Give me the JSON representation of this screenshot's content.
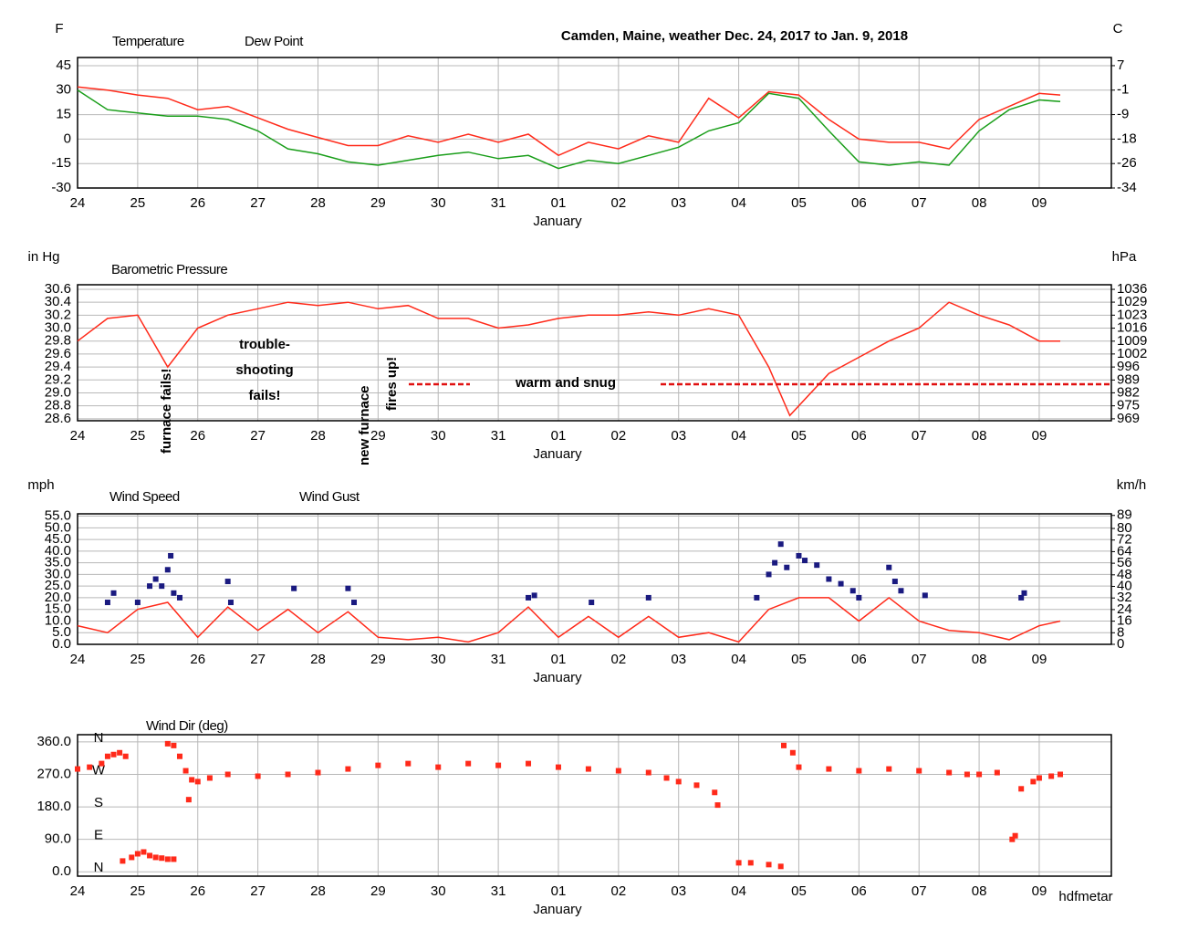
{
  "chart_data": [
    {
      "type": "line",
      "title": "Camden, Maine, weather Dec. 24, 2017 to Jan. 9, 2018",
      "y_unit": "F",
      "y2_unit": "C",
      "x_label": "January",
      "xlim": [
        0,
        17.2
      ],
      "xticks": [
        {
          "value": 0,
          "label": "24"
        },
        {
          "value": 1,
          "label": "25"
        },
        {
          "value": 2,
          "label": "26"
        },
        {
          "value": 3,
          "label": "27"
        },
        {
          "value": 4,
          "label": "28"
        },
        {
          "value": 5,
          "label": "29"
        },
        {
          "value": 6,
          "label": "30"
        },
        {
          "value": 7,
          "label": "31"
        },
        {
          "value": 8,
          "label": "01"
        },
        {
          "value": 9,
          "label": "02"
        },
        {
          "value": 10,
          "label": "03"
        },
        {
          "value": 11,
          "label": "04"
        },
        {
          "value": 12,
          "label": "05"
        },
        {
          "value": 13,
          "label": "06"
        },
        {
          "value": 14,
          "label": "07"
        },
        {
          "value": 15,
          "label": "08"
        },
        {
          "value": 16,
          "label": "09"
        }
      ],
      "ylim": [
        -30,
        50
      ],
      "yticks": [
        45,
        30,
        15,
        0,
        -15,
        -30
      ],
      "y2lim": [
        -34.44,
        10
      ],
      "y2ticks": [
        {
          "value": 7.22,
          "label": "7"
        },
        {
          "value": -1.11,
          "label": "-1"
        },
        {
          "value": -9.44,
          "label": "-9"
        },
        {
          "value": -17.78,
          "label": "-18"
        },
        {
          "value": -26.11,
          "label": "-26"
        },
        {
          "value": -34.44,
          "label": "-34"
        }
      ],
      "grid": true,
      "x": [
        0,
        0.5,
        1,
        1.5,
        2,
        2.5,
        3,
        3.5,
        4,
        4.5,
        5,
        5.5,
        6,
        6.5,
        7,
        7.5,
        8,
        8.5,
        9,
        9.5,
        10,
        10.5,
        11,
        11.5,
        12,
        12.5,
        13,
        13.5,
        14,
        14.5,
        15,
        15.5,
        16,
        16.35
      ],
      "series": [
        {
          "name": "Temperature",
          "color": "#ff2a1a",
          "values": [
            32,
            30,
            27,
            25,
            18,
            20,
            13,
            6,
            1,
            -4,
            -4,
            2,
            -2,
            3,
            -2,
            3,
            -10,
            -2,
            -6,
            2,
            -2,
            25,
            13,
            29,
            27,
            12,
            0,
            -2,
            -2,
            -6,
            12,
            20,
            28,
            27
          ]
        },
        {
          "name": "Dew Point",
          "color": "#1a9e1a",
          "values": [
            30,
            18,
            16,
            14,
            14,
            12,
            5,
            -6,
            -9,
            -14,
            -16,
            -13,
            -10,
            -8,
            -12,
            -10,
            -18,
            -13,
            -15,
            -10,
            -5,
            5,
            10,
            28,
            25,
            5,
            -14,
            -16,
            -14,
            -16,
            5,
            18,
            24,
            23
          ]
        }
      ]
    },
    {
      "type": "line",
      "y_unit": "in Hg",
      "y2_unit": "hPa",
      "x_label": "January",
      "xlim": [
        0,
        17.2
      ],
      "xticks": [
        {
          "value": 0,
          "label": "24"
        },
        {
          "value": 1,
          "label": "25"
        },
        {
          "value": 2,
          "label": "26"
        },
        {
          "value": 3,
          "label": "27"
        },
        {
          "value": 4,
          "label": "28"
        },
        {
          "value": 5,
          "label": "29"
        },
        {
          "value": 6,
          "label": "30"
        },
        {
          "value": 7,
          "label": "31"
        },
        {
          "value": 8,
          "label": "01"
        },
        {
          "value": 9,
          "label": "02"
        },
        {
          "value": 10,
          "label": "03"
        },
        {
          "value": 11,
          "label": "04"
        },
        {
          "value": 12,
          "label": "05"
        },
        {
          "value": 13,
          "label": "06"
        },
        {
          "value": 14,
          "label": "07"
        },
        {
          "value": 15,
          "label": "08"
        },
        {
          "value": 16,
          "label": "09"
        }
      ],
      "ylim": [
        28.57,
        30.67
      ],
      "yticks": [
        30.6,
        30.4,
        30.2,
        {
          "value": 30,
          "label": "30.0"
        },
        29.8,
        29.6,
        29.4,
        29.2,
        {
          "value": 29,
          "label": "29.0"
        },
        28.8,
        28.6
      ],
      "y2lim": [
        967.5,
        1038.6
      ],
      "y2ticks": [
        {
          "value": 1036.2,
          "label": "1036"
        },
        {
          "value": 1029.5,
          "label": "1029"
        },
        {
          "value": 1022.7,
          "label": "1023"
        },
        {
          "value": 1015.9,
          "label": "1016"
        },
        {
          "value": 1009.1,
          "label": "1009"
        },
        {
          "value": 1002.4,
          "label": "1002"
        },
        {
          "value": 995.6,
          "label": "996"
        },
        {
          "value": 988.8,
          "label": "989"
        },
        {
          "value": 982.1,
          "label": "982"
        },
        {
          "value": 975.3,
          "label": "975"
        },
        {
          "value": 968.5,
          "label": "969"
        }
      ],
      "grid": true,
      "x": [
        0,
        0.5,
        1,
        1.5,
        2,
        2.5,
        3,
        3.5,
        4,
        4.5,
        5,
        5.5,
        6,
        6.5,
        7,
        7.5,
        8,
        8.5,
        9,
        9.5,
        10,
        10.5,
        11,
        11.5,
        11.85,
        12.5,
        13,
        13.5,
        14,
        14.5,
        15,
        15.5,
        16,
        16.35
      ],
      "series": [
        {
          "name": "Barometric Pressure",
          "color": "#ff2a1a",
          "values": [
            29.8,
            30.15,
            30.2,
            29.4,
            30.0,
            30.2,
            30.3,
            30.4,
            30.35,
            30.4,
            30.3,
            30.35,
            30.15,
            30.15,
            30.0,
            30.05,
            30.15,
            30.2,
            30.2,
            30.25,
            30.2,
            30.3,
            30.2,
            29.4,
            28.65,
            29.3,
            29.55,
            29.8,
            30.0,
            30.4,
            30.2,
            30.05,
            29.8,
            29.8
          ]
        }
      ],
      "annotations": [
        {
          "text": "furnace fails!",
          "color": "#1a1a70"
        },
        {
          "lines": [
            "trouble-",
            "shooting",
            "fails!"
          ],
          "color": "#1a1a70"
        },
        {
          "lines": [
            "new furnace",
            "fires up!"
          ],
          "color": "#e01010"
        },
        {
          "text": "warm and snug",
          "color": "#e01010"
        }
      ]
    },
    {
      "type": "line",
      "y_unit": "mph",
      "y2_unit": "km/h",
      "x_label": "January",
      "xlim": [
        0,
        17.2
      ],
      "xticks": [
        {
          "value": 0,
          "label": "24"
        },
        {
          "value": 1,
          "label": "25"
        },
        {
          "value": 2,
          "label": "26"
        },
        {
          "value": 3,
          "label": "27"
        },
        {
          "value": 4,
          "label": "28"
        },
        {
          "value": 5,
          "label": "29"
        },
        {
          "value": 6,
          "label": "30"
        },
        {
          "value": 7,
          "label": "31"
        },
        {
          "value": 8,
          "label": "01"
        },
        {
          "value": 9,
          "label": "02"
        },
        {
          "value": 10,
          "label": "03"
        },
        {
          "value": 11,
          "label": "04"
        },
        {
          "value": 12,
          "label": "05"
        },
        {
          "value": 13,
          "label": "06"
        },
        {
          "value": 14,
          "label": "07"
        },
        {
          "value": 15,
          "label": "08"
        },
        {
          "value": 16,
          "label": "09"
        }
      ],
      "ylim": [
        0,
        56
      ],
      "yticks": [
        {
          "value": 55,
          "label": "55.0"
        },
        {
          "value": 50,
          "label": "50.0"
        },
        {
          "value": 45,
          "label": "45.0"
        },
        {
          "value": 40,
          "label": "40.0"
        },
        {
          "value": 35,
          "label": "35.0"
        },
        {
          "value": 30,
          "label": "30.0"
        },
        {
          "value": 25,
          "label": "25.0"
        },
        {
          "value": 20,
          "label": "20.0"
        },
        {
          "value": 15,
          "label": "15.0"
        },
        {
          "value": 10,
          "label": "10.0"
        },
        {
          "value": 5,
          "label": "5.0"
        },
        {
          "value": 0,
          "label": "0.0"
        }
      ],
      "y2lim": [
        0,
        90.1
      ],
      "y2ticks": [
        89,
        80,
        72,
        64,
        56,
        48,
        40,
        32,
        24,
        16,
        8,
        0
      ],
      "grid": true,
      "x": [
        0,
        0.5,
        1,
        1.5,
        2,
        2.5,
        3,
        3.5,
        4,
        4.5,
        5,
        5.5,
        6,
        6.5,
        7,
        7.5,
        8,
        8.5,
        9,
        9.5,
        10,
        10.5,
        11,
        11.5,
        12,
        12.5,
        13,
        13.5,
        14,
        14.5,
        15,
        15.5,
        16,
        16.35
      ],
      "series": [
        {
          "name": "Wind Speed",
          "color": "#ff2a1a",
          "values": [
            8,
            5,
            15,
            18,
            3,
            16,
            6,
            15,
            5,
            14,
            3,
            2,
            3,
            1,
            5,
            16,
            3,
            12,
            3,
            12,
            3,
            5,
            1,
            15,
            20,
            20,
            10,
            20,
            10,
            6,
            5,
            2,
            8,
            10
          ]
        },
        {
          "name": "Wind Gust",
          "color": "#1a1a80",
          "type": "scatter",
          "x": [
            0.5,
            0.6,
            1.0,
            1.2,
            1.3,
            1.4,
            1.5,
            1.55,
            1.6,
            1.7,
            2.5,
            2.55,
            3.6,
            4.5,
            4.6,
            7.5,
            7.6,
            8.55,
            9.5,
            11.3,
            11.5,
            11.6,
            11.7,
            11.8,
            12,
            12.1,
            12.3,
            12.5,
            12.7,
            12.9,
            13.0,
            13.5,
            13.6,
            13.7,
            14.1,
            15.7,
            15.75
          ],
          "values": [
            18,
            22,
            18,
            25,
            28,
            25,
            32,
            38,
            22,
            20,
            27,
            18,
            24,
            24,
            18,
            20,
            21,
            18,
            20,
            20,
            30,
            35,
            43,
            33,
            38,
            36,
            34,
            28,
            26,
            23,
            20,
            33,
            27,
            23,
            21,
            20,
            22
          ]
        }
      ]
    },
    {
      "type": "scatter",
      "x_label": "January",
      "credit": "hdfmetar",
      "xlim": [
        0,
        17.2
      ],
      "xticks": [
        {
          "value": 0,
          "label": "24"
        },
        {
          "value": 1,
          "label": "25"
        },
        {
          "value": 2,
          "label": "26"
        },
        {
          "value": 3,
          "label": "27"
        },
        {
          "value": 4,
          "label": "28"
        },
        {
          "value": 5,
          "label": "29"
        },
        {
          "value": 6,
          "label": "30"
        },
        {
          "value": 7,
          "label": "31"
        },
        {
          "value": 8,
          "label": "01"
        },
        {
          "value": 9,
          "label": "02"
        },
        {
          "value": 10,
          "label": "03"
        },
        {
          "value": 11,
          "label": "04"
        },
        {
          "value": 12,
          "label": "05"
        },
        {
          "value": 13,
          "label": "06"
        },
        {
          "value": 14,
          "label": "07"
        },
        {
          "value": 15,
          "label": "08"
        },
        {
          "value": 16,
          "label": "09"
        }
      ],
      "ylim": [
        -12,
        380
      ],
      "yticks": [
        {
          "value": 360,
          "label": "360.0"
        },
        {
          "value": 270,
          "label": "270.0"
        },
        {
          "value": 180,
          "label": "180.0"
        },
        {
          "value": 90,
          "label": "90.0"
        },
        {
          "value": 0,
          "label": "0.0"
        }
      ],
      "compass_labels": [
        "N",
        "W",
        "S",
        "E",
        "N"
      ],
      "grid": true,
      "series": [
        {
          "name": "Wind Dir (deg)",
          "color": "#ff2a1a",
          "x": [
            0,
            0.2,
            0.4,
            0.5,
            0.6,
            0.7,
            0.8,
            0.75,
            0.9,
            1.0,
            1.1,
            1.2,
            1.3,
            1.4,
            1.5,
            1.6,
            1.5,
            1.6,
            1.7,
            1.8,
            1.85,
            1.9,
            2.0,
            2.2,
            2.5,
            3,
            3.5,
            4,
            4.5,
            5,
            5.5,
            6,
            6.5,
            7,
            7.5,
            8,
            8.5,
            9,
            9.5,
            9.8,
            10,
            10.3,
            10.6,
            10.65,
            11.0,
            11.2,
            11.5,
            11.7,
            11.75,
            11.9,
            12,
            12.5,
            13,
            13.5,
            14,
            14.5,
            14.8,
            15,
            15.3,
            15.55,
            15.6,
            15.7,
            15.9,
            16,
            16.2,
            16.35
          ],
          "values": [
            285,
            290,
            300,
            320,
            325,
            330,
            320,
            30,
            40,
            50,
            55,
            45,
            40,
            38,
            35,
            35,
            355,
            350,
            320,
            280,
            200,
            255,
            250,
            260,
            270,
            265,
            270,
            275,
            285,
            295,
            300,
            290,
            300,
            295,
            300,
            290,
            285,
            280,
            275,
            260,
            250,
            240,
            220,
            185,
            25,
            25,
            20,
            15,
            350,
            330,
            290,
            285,
            280,
            285,
            280,
            275,
            270,
            270,
            275,
            90,
            100,
            230,
            250,
            260,
            265,
            270
          ]
        }
      ]
    }
  ]
}
